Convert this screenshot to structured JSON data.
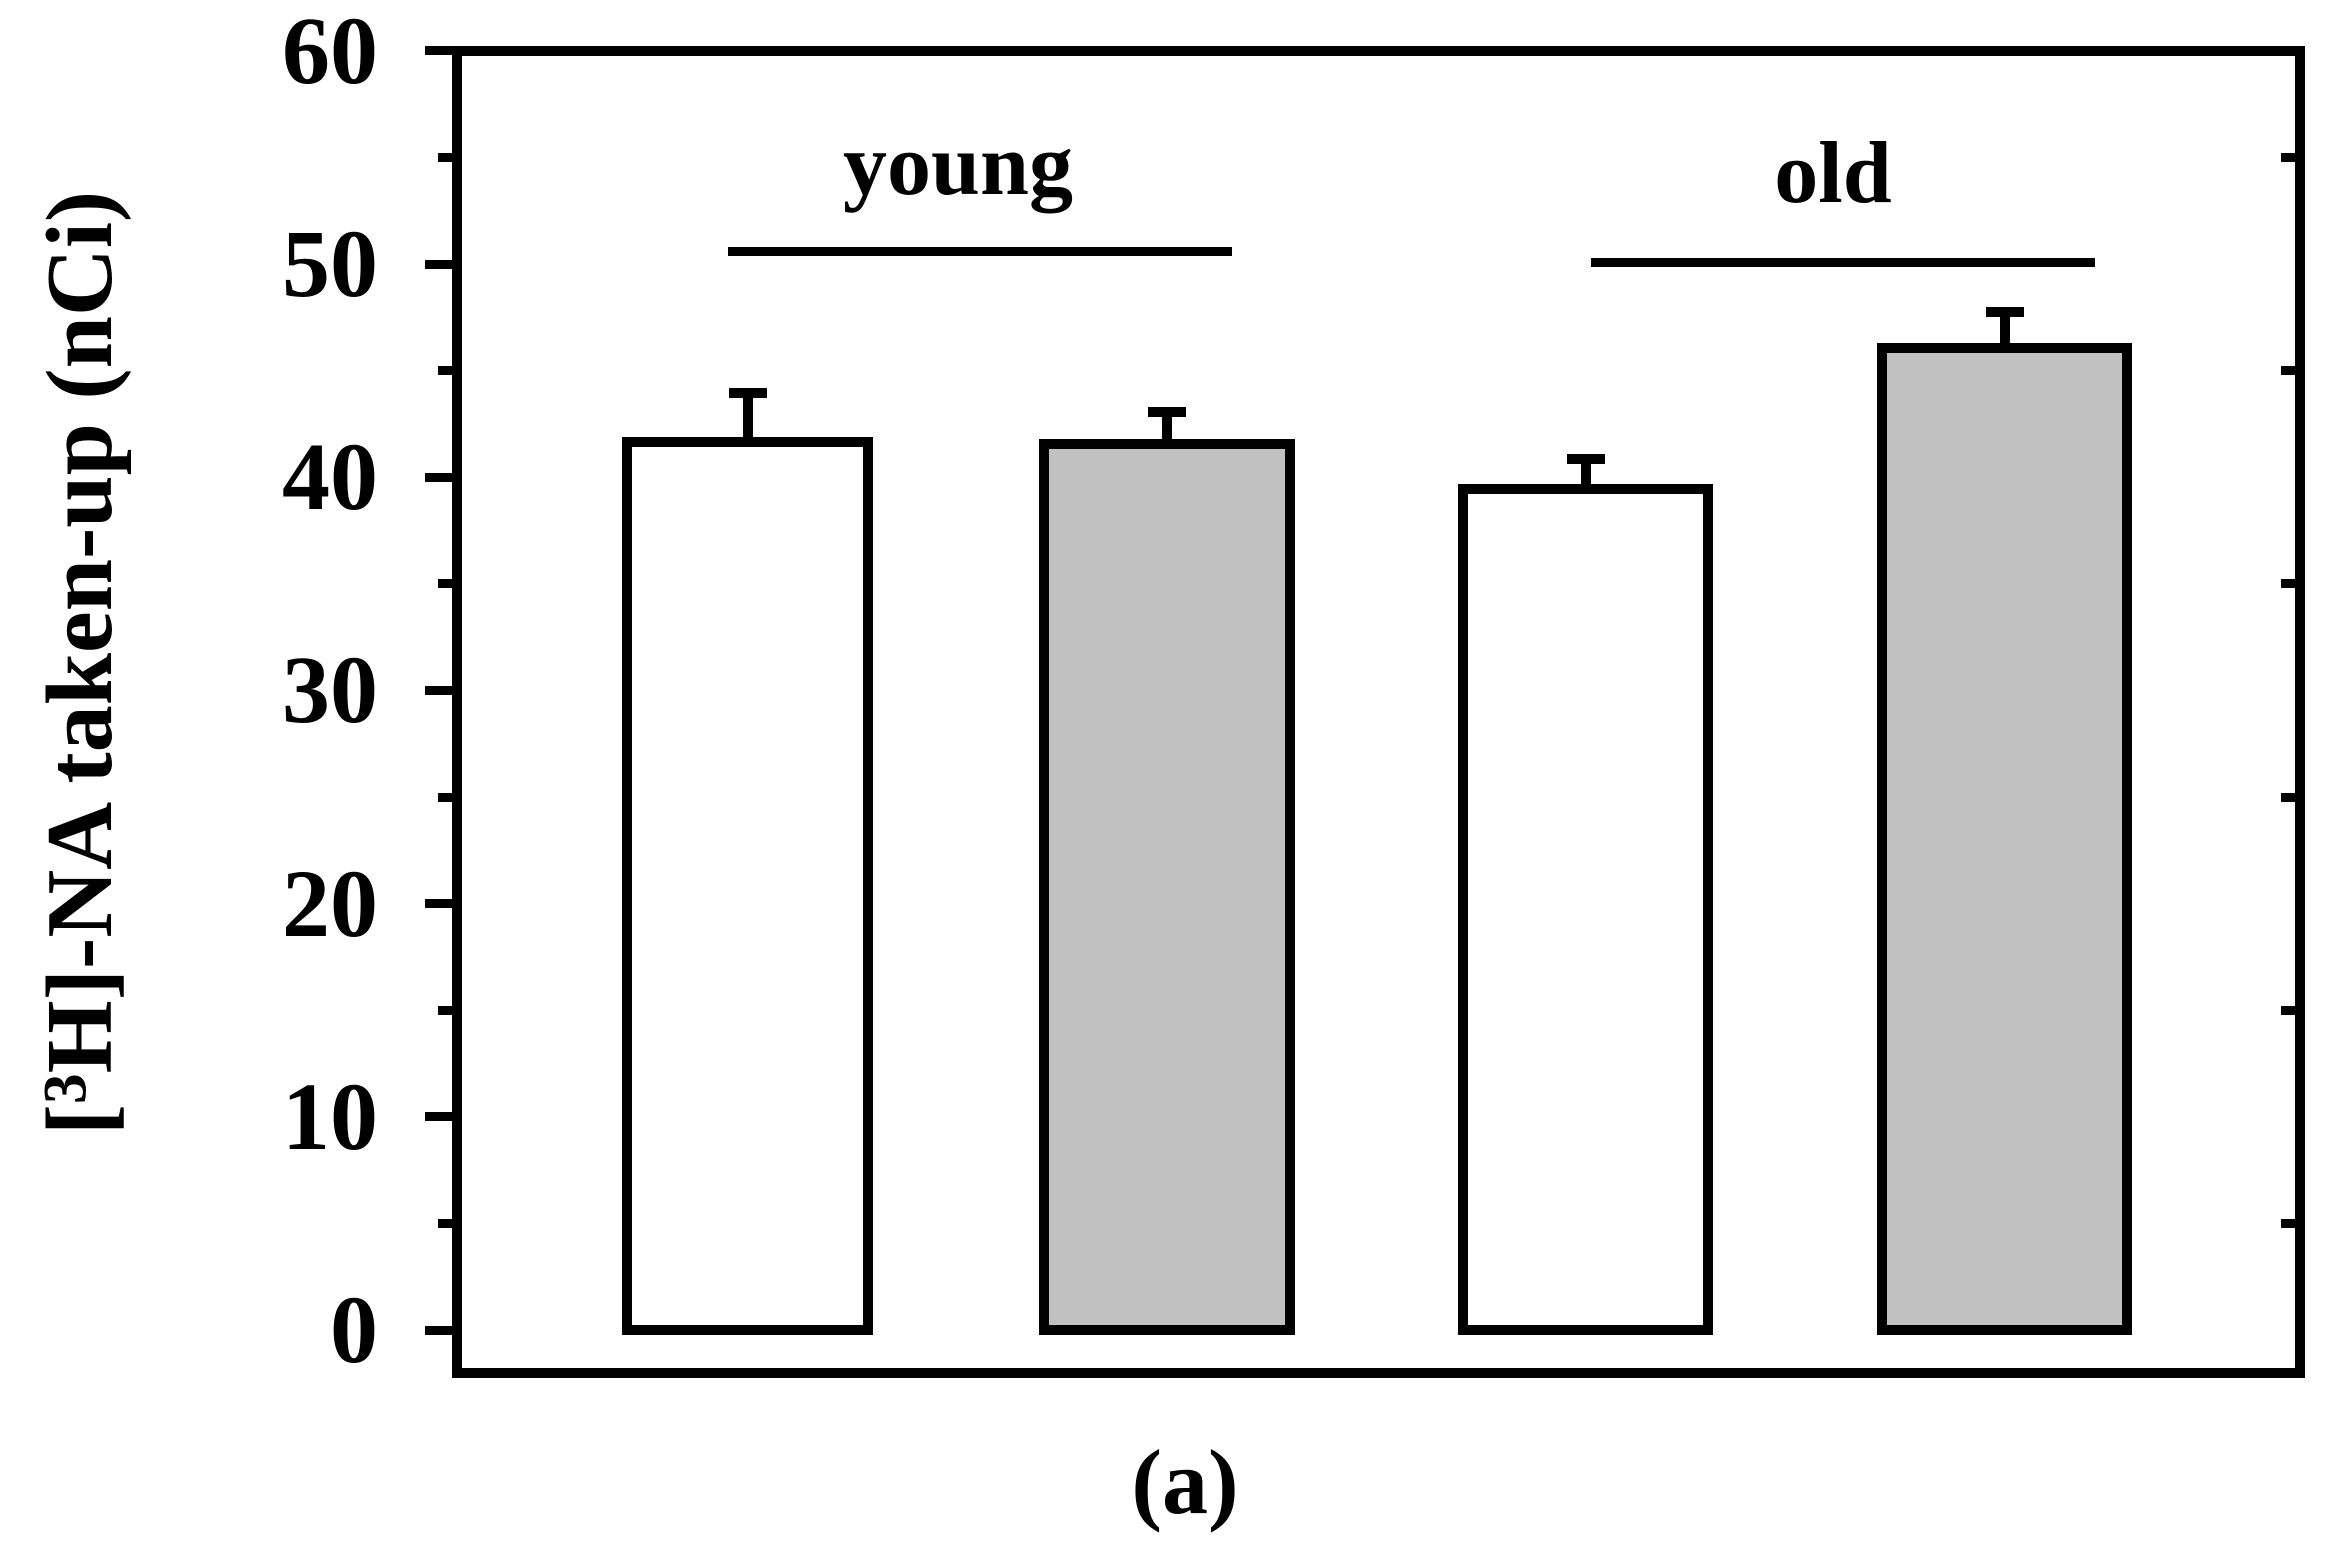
{
  "figure": {
    "background": "#ffffff",
    "caption": "(a)",
    "y_axis": {
      "label_bracket": "[",
      "label_superscript": "3",
      "label_rest": "H]-NA taken-up (nCi)",
      "tick_labels": [
        "0",
        "10",
        "20",
        "30",
        "40",
        "50",
        "60"
      ]
    },
    "group_labels": [
      "young",
      "old"
    ]
  },
  "chart_data": {
    "type": "bar",
    "title": "",
    "xlabel": "",
    "ylabel": "[3H]-NA taken-up (nCi)",
    "caption": "(a)",
    "ylim": [
      0,
      60
    ],
    "yticks_major": [
      0,
      10,
      20,
      30,
      40,
      50,
      60
    ],
    "yticks_minor": [
      5,
      15,
      25,
      35,
      45,
      55
    ],
    "grid": false,
    "legend": "none",
    "error_bars": "upper only, T-cap",
    "colors": {
      "line": "#000000",
      "bar_white": "#ffffff",
      "bar_gray": "#c1c1c1"
    },
    "groups": [
      {
        "label": "young",
        "bars": [
          {
            "fill": "white",
            "color_hex": "#ffffff",
            "value": 41.9,
            "error_plus": 2.3
          },
          {
            "fill": "gray",
            "color_hex": "#c1c1c1",
            "value": 41.8,
            "error_plus": 1.5
          }
        ]
      },
      {
        "label": "old",
        "bars": [
          {
            "fill": "white",
            "color_hex": "#ffffff",
            "value": 39.7,
            "error_plus": 1.4
          },
          {
            "fill": "gray",
            "color_hex": "#c1c1c1",
            "value": 46.3,
            "error_plus": 1.7
          }
        ]
      }
    ]
  }
}
